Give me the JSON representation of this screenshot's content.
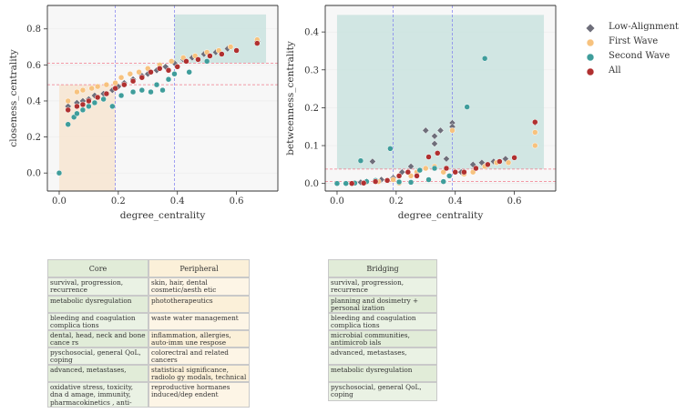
{
  "chart_data": [
    {
      "type": "scatter",
      "title": "",
      "xlabel": "degree_centrality",
      "ylabel": "closeness_centrality",
      "xlim": [
        -0.04,
        0.74
      ],
      "ylim": [
        -0.1,
        0.93
      ],
      "xticks": [
        "0.0",
        "0.2",
        "0.4",
        "0.6"
      ],
      "yticks": [
        "0.0",
        "0.2",
        "0.4",
        "0.6",
        "0.8"
      ],
      "thresholds": {
        "x": [
          0.19,
          0.39
        ],
        "y": [
          0.49,
          0.61
        ]
      },
      "regions": [
        {
          "name": "peripheral",
          "color": "#f6e6d3",
          "x": [
            0.0,
            0.19
          ],
          "y": [
            -0.1,
            0.49
          ]
        },
        {
          "name": "core",
          "color": "#cce3e0",
          "x": [
            0.39,
            0.7
          ],
          "y": [
            0.61,
            0.88
          ]
        }
      ],
      "series": [
        {
          "name": "Low-Alignment",
          "color": "#6e6e7a",
          "marker": "diamond",
          "points": [
            [
              0.03,
              0.37
            ],
            [
              0.06,
              0.39
            ],
            [
              0.08,
              0.4
            ],
            [
              0.1,
              0.41
            ],
            [
              0.12,
              0.43
            ],
            [
              0.15,
              0.44
            ],
            [
              0.18,
              0.46
            ],
            [
              0.2,
              0.48
            ],
            [
              0.22,
              0.5
            ],
            [
              0.25,
              0.52
            ],
            [
              0.28,
              0.54
            ],
            [
              0.3,
              0.55
            ],
            [
              0.33,
              0.57
            ],
            [
              0.36,
              0.59
            ],
            [
              0.39,
              0.61
            ],
            [
              0.42,
              0.63
            ],
            [
              0.45,
              0.64
            ],
            [
              0.49,
              0.66
            ],
            [
              0.53,
              0.67
            ],
            [
              0.57,
              0.69
            ],
            [
              0.67,
              0.73
            ]
          ]
        },
        {
          "name": "First Wave",
          "color": "#f7c27e",
          "marker": "circle",
          "points": [
            [
              0.03,
              0.4
            ],
            [
              0.06,
              0.45
            ],
            [
              0.08,
              0.46
            ],
            [
              0.11,
              0.47
            ],
            [
              0.13,
              0.48
            ],
            [
              0.16,
              0.49
            ],
            [
              0.19,
              0.5
            ],
            [
              0.21,
              0.53
            ],
            [
              0.24,
              0.55
            ],
            [
              0.27,
              0.56
            ],
            [
              0.3,
              0.58
            ],
            [
              0.34,
              0.6
            ],
            [
              0.38,
              0.62
            ],
            [
              0.42,
              0.64
            ],
            [
              0.46,
              0.65
            ],
            [
              0.5,
              0.67
            ],
            [
              0.54,
              0.68
            ],
            [
              0.58,
              0.7
            ],
            [
              0.67,
              0.74
            ]
          ]
        },
        {
          "name": "Second Wave",
          "color": "#3f9d9b",
          "marker": "circle",
          "points": [
            [
              0.0,
              0.0
            ],
            [
              0.03,
              0.27
            ],
            [
              0.05,
              0.31
            ],
            [
              0.06,
              0.33
            ],
            [
              0.08,
              0.35
            ],
            [
              0.1,
              0.37
            ],
            [
              0.12,
              0.39
            ],
            [
              0.15,
              0.41
            ],
            [
              0.18,
              0.37
            ],
            [
              0.21,
              0.43
            ],
            [
              0.25,
              0.45
            ],
            [
              0.28,
              0.46
            ],
            [
              0.31,
              0.45
            ],
            [
              0.33,
              0.49
            ],
            [
              0.35,
              0.46
            ],
            [
              0.37,
              0.52
            ],
            [
              0.39,
              0.55
            ],
            [
              0.44,
              0.56
            ],
            [
              0.5,
              0.62
            ]
          ]
        },
        {
          "name": "All",
          "color": "#b03030",
          "marker": "circle",
          "points": [
            [
              0.03,
              0.35
            ],
            [
              0.06,
              0.37
            ],
            [
              0.08,
              0.38
            ],
            [
              0.1,
              0.4
            ],
            [
              0.13,
              0.42
            ],
            [
              0.16,
              0.44
            ],
            [
              0.19,
              0.47
            ],
            [
              0.22,
              0.49
            ],
            [
              0.25,
              0.51
            ],
            [
              0.28,
              0.53
            ],
            [
              0.31,
              0.56
            ],
            [
              0.34,
              0.58
            ],
            [
              0.37,
              0.57
            ],
            [
              0.4,
              0.59
            ],
            [
              0.43,
              0.62
            ],
            [
              0.47,
              0.63
            ],
            [
              0.51,
              0.65
            ],
            [
              0.55,
              0.66
            ],
            [
              0.6,
              0.68
            ],
            [
              0.67,
              0.72
            ]
          ]
        }
      ]
    },
    {
      "type": "scatter",
      "title": "",
      "xlabel": "degree_centrality",
      "ylabel": "betweenness_centrality",
      "xlim": [
        -0.04,
        0.74
      ],
      "ylim": [
        -0.02,
        0.47
      ],
      "xticks": [
        "0.0",
        "0.2",
        "0.4",
        "0.6"
      ],
      "yticks": [
        "0.0",
        "0.1",
        "0.2",
        "0.3",
        "0.4"
      ],
      "thresholds": {
        "x": [
          0.19,
          0.39
        ],
        "y": [
          0.005,
          0.038
        ]
      },
      "regions": [
        {
          "name": "bridging",
          "color": "#cce3e0",
          "x": [
            0.0,
            0.7
          ],
          "y": [
            0.038,
            0.445
          ]
        }
      ],
      "series": [
        {
          "name": "Low-Alignment",
          "color": "#6e6e7a",
          "marker": "diamond",
          "points": [
            [
              0.08,
              0.003
            ],
            [
              0.1,
              0.006
            ],
            [
              0.12,
              0.058
            ],
            [
              0.15,
              0.01
            ],
            [
              0.19,
              0.015
            ],
            [
              0.22,
              0.03
            ],
            [
              0.25,
              0.045
            ],
            [
              0.28,
              0.035
            ],
            [
              0.3,
              0.14
            ],
            [
              0.33,
              0.125
            ],
            [
              0.33,
              0.105
            ],
            [
              0.35,
              0.14
            ],
            [
              0.37,
              0.065
            ],
            [
              0.39,
              0.16
            ],
            [
              0.39,
              0.15
            ],
            [
              0.42,
              0.03
            ],
            [
              0.46,
              0.05
            ],
            [
              0.49,
              0.055
            ],
            [
              0.53,
              0.058
            ],
            [
              0.57,
              0.065
            ],
            [
              0.67,
              0.16
            ]
          ]
        },
        {
          "name": "First Wave",
          "color": "#f7c27e",
          "marker": "circle",
          "points": [
            [
              0.03,
              0.0
            ],
            [
              0.06,
              0.001
            ],
            [
              0.1,
              0.003
            ],
            [
              0.14,
              0.005
            ],
            [
              0.19,
              0.01
            ],
            [
              0.21,
              0.001
            ],
            [
              0.25,
              0.02
            ],
            [
              0.27,
              0.03
            ],
            [
              0.3,
              0.04
            ],
            [
              0.33,
              0.045
            ],
            [
              0.36,
              0.03
            ],
            [
              0.39,
              0.14
            ],
            [
              0.43,
              0.025
            ],
            [
              0.46,
              0.03
            ],
            [
              0.5,
              0.045
            ],
            [
              0.54,
              0.055
            ],
            [
              0.58,
              0.055
            ],
            [
              0.67,
              0.135
            ],
            [
              0.67,
              0.1
            ]
          ]
        },
        {
          "name": "Second Wave",
          "color": "#3f9d9b",
          "marker": "circle",
          "points": [
            [
              0.0,
              0.0
            ],
            [
              0.03,
              0.0
            ],
            [
              0.06,
              0.001
            ],
            [
              0.08,
              0.06
            ],
            [
              0.1,
              0.005
            ],
            [
              0.13,
              0.008
            ],
            [
              0.18,
              0.092
            ],
            [
              0.21,
              0.004
            ],
            [
              0.25,
              0.003
            ],
            [
              0.28,
              0.035
            ],
            [
              0.31,
              0.01
            ],
            [
              0.33,
              0.04
            ],
            [
              0.36,
              0.005
            ],
            [
              0.38,
              0.02
            ],
            [
              0.44,
              0.202
            ],
            [
              0.5,
              0.33
            ]
          ]
        },
        {
          "name": "All",
          "color": "#b03030",
          "marker": "circle",
          "points": [
            [
              0.05,
              0.0
            ],
            [
              0.09,
              0.001
            ],
            [
              0.13,
              0.005
            ],
            [
              0.17,
              0.008
            ],
            [
              0.21,
              0.02
            ],
            [
              0.24,
              0.03
            ],
            [
              0.27,
              0.02
            ],
            [
              0.31,
              0.07
            ],
            [
              0.34,
              0.08
            ],
            [
              0.37,
              0.04
            ],
            [
              0.4,
              0.03
            ],
            [
              0.43,
              0.03
            ],
            [
              0.47,
              0.04
            ],
            [
              0.51,
              0.05
            ],
            [
              0.55,
              0.058
            ],
            [
              0.6,
              0.068
            ],
            [
              0.67,
              0.162
            ]
          ]
        }
      ]
    }
  ],
  "legend": [
    {
      "label": "Low-Alignment",
      "color": "#6e6e7a",
      "marker": "diamond"
    },
    {
      "label": "First Wave",
      "color": "#f7c27e",
      "marker": "circle"
    },
    {
      "label": "Second Wave",
      "color": "#3f9d9b",
      "marker": "circle"
    },
    {
      "label": "All",
      "color": "#b03030",
      "marker": "circle"
    }
  ],
  "tables": {
    "core": {
      "header": "Core",
      "rows": [
        "survival, progression, recurrence",
        "metabolic dysregulation",
        "bleeding and coagulation complica tions",
        "dental, head, neck and bone cance rs",
        "pyschosocial, general QoL, coping",
        "advanced, metastases,",
        "oxidative stress, toxicity, dna d amage, immunity, pharmacokinetics , anti-tumor"
      ]
    },
    "peripheral": {
      "header": "Peripheral",
      "rows": [
        "skin, hair, dental cosmetic/aesth etic",
        "phototherapeutics",
        "waste water management",
        "inflammation, allergies, auto-imm une respose",
        "colorectral and related cancers",
        "statistical significance, radiolo gy modals, technical methods,",
        "reproductive hormanes induced/dep endent"
      ]
    },
    "bridging": {
      "header": "Bridging",
      "rows": [
        "survival, progression, recurrence",
        "planning and dosimetry + personal ization",
        "bleeding and coagulation complica tions",
        "microbial communities, antimicrob ials",
        "advanced, metastases,",
        "metabolic dysregulation",
        "pyschosocial, general QoL, coping"
      ]
    }
  }
}
